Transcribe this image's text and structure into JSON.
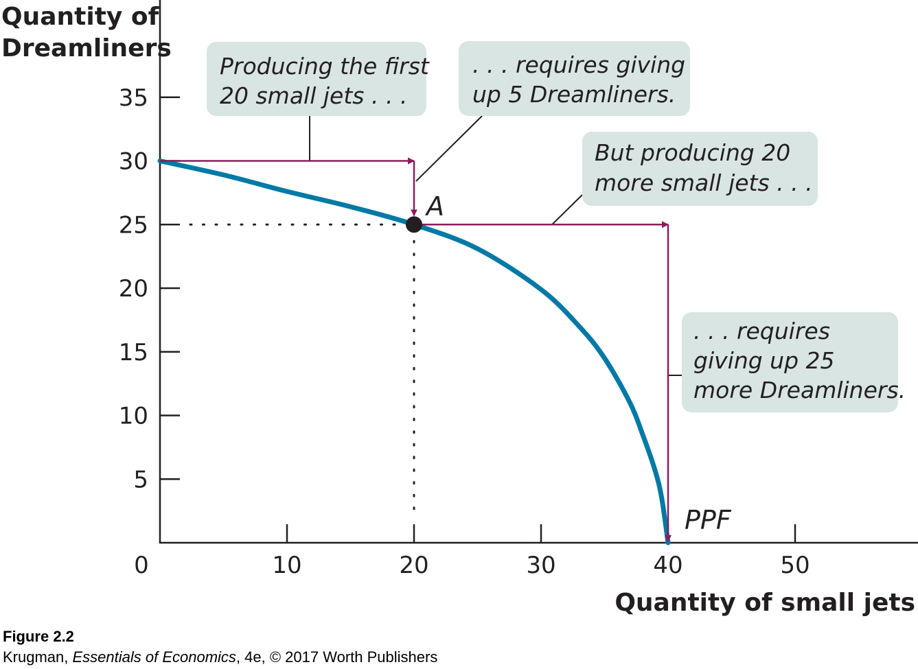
{
  "chart_data": {
    "type": "line",
    "xlabel": "Quantity of small jets",
    "ylabel": [
      "Quantity of",
      "Dreamliners"
    ],
    "xlim": [
      0,
      59
    ],
    "ylim": [
      0,
      42
    ],
    "x_ticks": [
      10,
      20,
      30,
      40,
      50
    ],
    "y_ticks": [
      5,
      10,
      15,
      20,
      25,
      30,
      35
    ],
    "origin_label": "0",
    "grid": false,
    "series": [
      {
        "name": "PPF",
        "x": [
          0,
          5,
          10,
          15,
          20,
          25,
          30,
          33,
          35,
          37,
          38,
          39,
          39.5,
          40
        ],
        "y": [
          30,
          28.9,
          27.6,
          26.4,
          25,
          23.1,
          19.9,
          17.0,
          14.5,
          11.0,
          8.5,
          5.6,
          3.5,
          0
        ]
      }
    ],
    "points": [
      {
        "label": "A",
        "x": 20,
        "y": 25
      }
    ],
    "annotations": [
      {
        "lines": [
          "Producing the first",
          "20 small jets . . ."
        ]
      },
      {
        "lines": [
          ". . . requires giving",
          "up 5 Dreamliners."
        ]
      },
      {
        "lines": [
          "But producing 20",
          "more small jets . . ."
        ]
      },
      {
        "lines": [
          ". . . requires",
          "giving up 25",
          "more Dreamliners."
        ]
      }
    ],
    "colors": {
      "curve": "#0079a6",
      "arrows": "#8c1d5b",
      "callout_box": "#d9e5e3",
      "ink": "#231f20"
    }
  },
  "caption": {
    "title": "Figure 2.2",
    "author": "Krugman, ",
    "book": "Essentials of Economics",
    "rest": ", 4e, © 2017 Worth Publishers"
  }
}
